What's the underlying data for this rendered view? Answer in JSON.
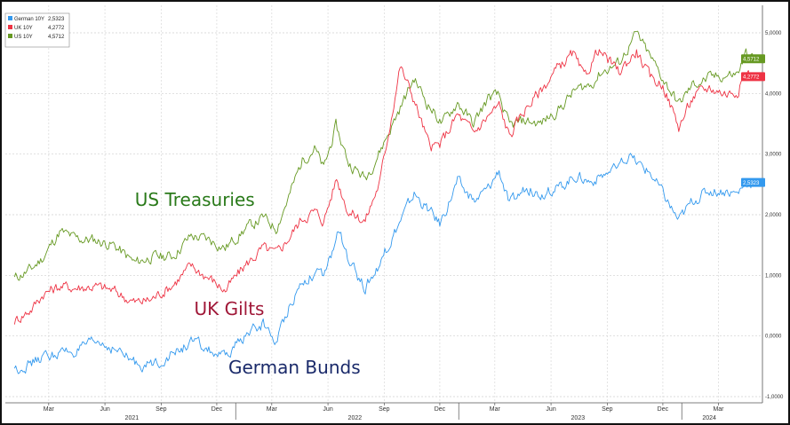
{
  "chart_data": {
    "type": "line",
    "ylim": [
      -1,
      5
    ],
    "y_ticks": [
      "-1,0000",
      "0,0000",
      "1,0000",
      "2,0000",
      "3,0000",
      "4,0000",
      "5,0000"
    ],
    "y_tick_values": [
      -1,
      0,
      1,
      2,
      3,
      4,
      5
    ],
    "x_ticks": [
      {
        "date": "2021-03-01",
        "label": "Mar"
      },
      {
        "date": "2021-06-01",
        "label": "Jun"
      },
      {
        "date": "2021-09-01",
        "label": "Sep"
      },
      {
        "date": "2021-12-01",
        "label": "Dec"
      },
      {
        "date": "2022-03-01",
        "label": "Mar"
      },
      {
        "date": "2022-06-01",
        "label": "Jun"
      },
      {
        "date": "2022-09-01",
        "label": "Sep"
      },
      {
        "date": "2022-12-01",
        "label": "Dec"
      },
      {
        "date": "2023-03-01",
        "label": "Mar"
      },
      {
        "date": "2023-06-01",
        "label": "Jun"
      },
      {
        "date": "2023-09-01",
        "label": "Sep"
      },
      {
        "date": "2023-12-01",
        "label": "Dec"
      },
      {
        "date": "2024-03-01",
        "label": "Mar"
      }
    ],
    "year_labels": [
      {
        "date": "2021-07-15",
        "label": "2021"
      },
      {
        "date": "2022-07-15",
        "label": "2022"
      },
      {
        "date": "2023-07-15",
        "label": "2023"
      },
      {
        "date": "2024-02-15",
        "label": "2024"
      }
    ],
    "year_dividers": [
      "2022-01-01",
      "2023-01-01",
      "2024-01-01"
    ],
    "grid": true,
    "legend": [
      {
        "name": "German 10Y",
        "value": "2,5323",
        "color": "#3399ee"
      },
      {
        "name": "UK 10Y",
        "value": "4,2772",
        "color": "#ee3344"
      },
      {
        "name": "US 10Y",
        "value": "4,5712",
        "color": "#669922"
      }
    ],
    "last_value_tags": [
      {
        "text": "4,5712",
        "value": 4.5712,
        "color": "#669922"
      },
      {
        "text": "4,2772",
        "value": 4.2772,
        "color": "#ee3344"
      },
      {
        "text": "2,5323",
        "value": 2.5323,
        "color": "#3399ee"
      }
    ],
    "annotations": [
      {
        "text": "US Treasuries",
        "color": "#2a7a1a",
        "date": "2021-07-20",
        "value": 2.15
      },
      {
        "text": "UK Gilts",
        "color": "#a01838",
        "date": "2021-10-25",
        "value": 0.35
      },
      {
        "text": "German Bunds",
        "color": "#1a2a6a",
        "date": "2021-12-20",
        "value": -0.62
      }
    ],
    "series": [
      {
        "name": "US 10Y",
        "color": "#669922",
        "points": [
          [
            "2021-01-04",
            0.95
          ],
          [
            "2021-02-01",
            1.1
          ],
          [
            "2021-02-20",
            1.3
          ],
          [
            "2021-03-19",
            1.72
          ],
          [
            "2021-04-15",
            1.6
          ],
          [
            "2021-05-15",
            1.58
          ],
          [
            "2021-06-15",
            1.5
          ],
          [
            "2021-07-20",
            1.2
          ],
          [
            "2021-08-15",
            1.3
          ],
          [
            "2021-09-20",
            1.32
          ],
          [
            "2021-10-20",
            1.65
          ],
          [
            "2021-11-20",
            1.58
          ],
          [
            "2021-12-15",
            1.45
          ],
          [
            "2022-01-15",
            1.75
          ],
          [
            "2022-02-15",
            1.95
          ],
          [
            "2022-03-08",
            1.78
          ],
          [
            "2022-03-31",
            2.35
          ],
          [
            "2022-04-20",
            2.9
          ],
          [
            "2022-05-10",
            3.1
          ],
          [
            "2022-05-25",
            2.75
          ],
          [
            "2022-06-14",
            3.45
          ],
          [
            "2022-07-05",
            2.85
          ],
          [
            "2022-08-01",
            2.6
          ],
          [
            "2022-08-25",
            3.05
          ],
          [
            "2022-09-15",
            3.5
          ],
          [
            "2022-10-20",
            4.25
          ],
          [
            "2022-11-10",
            3.85
          ],
          [
            "2022-12-05",
            3.5
          ],
          [
            "2022-12-30",
            3.85
          ],
          [
            "2023-01-25",
            3.5
          ],
          [
            "2023-02-20",
            3.95
          ],
          [
            "2023-03-08",
            3.95
          ],
          [
            "2023-03-25",
            3.45
          ],
          [
            "2023-04-20",
            3.55
          ],
          [
            "2023-05-15",
            3.5
          ],
          [
            "2023-06-15",
            3.75
          ],
          [
            "2023-07-10",
            4.05
          ],
          [
            "2023-08-05",
            4.15
          ],
          [
            "2023-08-22",
            4.35
          ],
          [
            "2023-09-20",
            4.5
          ],
          [
            "2023-10-19",
            4.98
          ],
          [
            "2023-11-10",
            4.6
          ],
          [
            "2023-12-01",
            4.25
          ],
          [
            "2023-12-27",
            3.82
          ],
          [
            "2024-01-20",
            4.15
          ],
          [
            "2024-02-15",
            4.25
          ],
          [
            "2024-03-15",
            4.3
          ],
          [
            "2024-04-01",
            4.32
          ],
          [
            "2024-04-15",
            4.65
          ],
          [
            "2024-04-29",
            4.57
          ]
        ]
      },
      {
        "name": "UK 10Y",
        "color": "#ee3344",
        "points": [
          [
            "2021-01-04",
            0.25
          ],
          [
            "2021-02-01",
            0.45
          ],
          [
            "2021-02-20",
            0.7
          ],
          [
            "2021-03-19",
            0.82
          ],
          [
            "2021-04-15",
            0.8
          ],
          [
            "2021-05-15",
            0.82
          ],
          [
            "2021-06-15",
            0.75
          ],
          [
            "2021-07-20",
            0.55
          ],
          [
            "2021-08-15",
            0.6
          ],
          [
            "2021-09-20",
            0.85
          ],
          [
            "2021-10-20",
            1.15
          ],
          [
            "2021-11-20",
            0.95
          ],
          [
            "2021-12-15",
            0.75
          ],
          [
            "2022-01-15",
            1.15
          ],
          [
            "2022-02-15",
            1.45
          ],
          [
            "2022-03-08",
            1.35
          ],
          [
            "2022-03-31",
            1.65
          ],
          [
            "2022-04-20",
            1.95
          ],
          [
            "2022-05-10",
            2.05
          ],
          [
            "2022-05-25",
            1.9
          ],
          [
            "2022-06-15",
            2.6
          ],
          [
            "2022-07-05",
            2.05
          ],
          [
            "2022-08-01",
            1.9
          ],
          [
            "2022-08-25",
            2.55
          ],
          [
            "2022-09-27",
            4.45
          ],
          [
            "2022-10-20",
            3.9
          ],
          [
            "2022-11-15",
            3.1
          ],
          [
            "2022-12-01",
            3.15
          ],
          [
            "2022-12-30",
            3.65
          ],
          [
            "2023-01-25",
            3.35
          ],
          [
            "2023-02-20",
            3.65
          ],
          [
            "2023-03-08",
            3.8
          ],
          [
            "2023-03-25",
            3.3
          ],
          [
            "2023-04-20",
            3.75
          ],
          [
            "2023-05-15",
            4.05
          ],
          [
            "2023-06-15",
            4.45
          ],
          [
            "2023-07-07",
            4.65
          ],
          [
            "2023-07-25",
            4.25
          ],
          [
            "2023-08-17",
            4.72
          ],
          [
            "2023-09-20",
            4.35
          ],
          [
            "2023-10-19",
            4.7
          ],
          [
            "2023-11-10",
            4.25
          ],
          [
            "2023-12-01",
            4.15
          ],
          [
            "2023-12-27",
            3.45
          ],
          [
            "2024-01-20",
            3.95
          ],
          [
            "2024-02-15",
            4.1
          ],
          [
            "2024-03-15",
            4.0
          ],
          [
            "2024-04-01",
            4.05
          ],
          [
            "2024-04-15",
            4.35
          ],
          [
            "2024-04-29",
            4.28
          ]
        ]
      },
      {
        "name": "German 10Y",
        "color": "#3399ee",
        "points": [
          [
            "2021-01-04",
            -0.55
          ],
          [
            "2021-02-01",
            -0.45
          ],
          [
            "2021-02-20",
            -0.35
          ],
          [
            "2021-03-19",
            -0.28
          ],
          [
            "2021-04-15",
            -0.25
          ],
          [
            "2021-05-20",
            -0.1
          ],
          [
            "2021-06-15",
            -0.2
          ],
          [
            "2021-07-20",
            -0.45
          ],
          [
            "2021-08-15",
            -0.48
          ],
          [
            "2021-09-20",
            -0.3
          ],
          [
            "2021-10-20",
            -0.1
          ],
          [
            "2021-11-20",
            -0.25
          ],
          [
            "2021-12-15",
            -0.38
          ],
          [
            "2022-01-15",
            0.0
          ],
          [
            "2022-02-15",
            0.2
          ],
          [
            "2022-03-08",
            -0.1
          ],
          [
            "2022-03-31",
            0.55
          ],
          [
            "2022-04-20",
            0.9
          ],
          [
            "2022-05-10",
            1.05
          ],
          [
            "2022-05-25",
            0.95
          ],
          [
            "2022-06-20",
            1.75
          ],
          [
            "2022-07-05",
            1.2
          ],
          [
            "2022-08-01",
            0.8
          ],
          [
            "2022-08-25",
            1.2
          ],
          [
            "2022-09-20",
            1.75
          ],
          [
            "2022-10-20",
            2.35
          ],
          [
            "2022-11-15",
            2.05
          ],
          [
            "2022-12-01",
            1.85
          ],
          [
            "2022-12-30",
            2.55
          ],
          [
            "2023-01-25",
            2.2
          ],
          [
            "2023-02-20",
            2.45
          ],
          [
            "2023-03-08",
            2.75
          ],
          [
            "2023-03-25",
            2.15
          ],
          [
            "2023-04-20",
            2.45
          ],
          [
            "2023-05-15",
            2.35
          ],
          [
            "2023-06-15",
            2.45
          ],
          [
            "2023-07-10",
            2.65
          ],
          [
            "2023-08-05",
            2.55
          ],
          [
            "2023-08-22",
            2.65
          ],
          [
            "2023-09-20",
            2.75
          ],
          [
            "2023-10-05",
            2.95
          ],
          [
            "2023-11-10",
            2.7
          ],
          [
            "2023-12-01",
            2.35
          ],
          [
            "2023-12-27",
            1.9
          ],
          [
            "2024-01-20",
            2.25
          ],
          [
            "2024-02-15",
            2.4
          ],
          [
            "2024-03-15",
            2.4
          ],
          [
            "2024-04-01",
            2.35
          ],
          [
            "2024-04-15",
            2.55
          ],
          [
            "2024-04-29",
            2.53
          ]
        ]
      }
    ]
  }
}
